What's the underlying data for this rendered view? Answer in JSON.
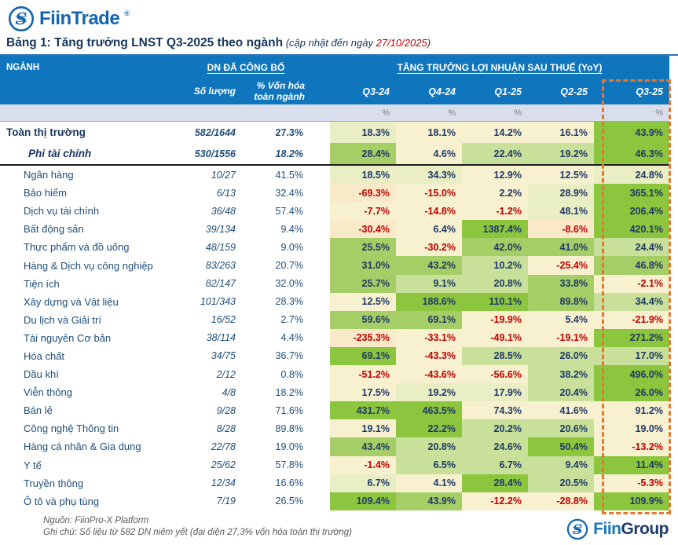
{
  "brand": {
    "name": "FiinTrade",
    "reg_mark": "®"
  },
  "title": {
    "main": "Bảng 1: Tăng trưởng LNST Q3-2025 theo ngành",
    "update_prefix": " (cập nhật đến ngày ",
    "update_date": "27/10/2025",
    "update_suffix": ")"
  },
  "table": {
    "col_sector": "NGÀNH",
    "group_published": "DN ĐÃ CÔNG BỐ",
    "group_growth": "TĂNG TRƯỞNG LỢI NHUẬN SAU THUẾ (YoY)",
    "sub_count": "Số lượng",
    "sub_cap": "% Vốn hóa toàn ngành",
    "quarters": [
      "Q3-24",
      "Q4-24",
      "Q1-25",
      "Q2-25",
      "Q3-25"
    ],
    "unit_row": [
      "%",
      "%",
      "%",
      "",
      "%"
    ],
    "summary_rows": [
      {
        "label": "Toàn thị trường",
        "count": "582/1644",
        "cap": "27.3%",
        "values": [
          "18.3%",
          "18.1%",
          "14.2%",
          "16.1%",
          "43.9%"
        ],
        "tones": [
          "p",
          "y",
          "y",
          "y",
          "G"
        ],
        "style": "bold"
      },
      {
        "label": "Phi tài chính",
        "count": "530/1556",
        "cap": "18.2%",
        "values": [
          "28.4%",
          "4.6%",
          "22.4%",
          "19.2%",
          "46.3%"
        ],
        "tones": [
          "g",
          "y",
          "l",
          "l",
          "G"
        ],
        "style": "bold-italic"
      }
    ],
    "sector_rows": [
      {
        "label": "Ngân hàng",
        "count": "10/27",
        "cap": "41.5%",
        "values": [
          "18.5%",
          "34.3%",
          "12.9%",
          "12.5%",
          "24.8%"
        ],
        "tones": [
          "p",
          "p",
          "y",
          "y",
          "p"
        ]
      },
      {
        "label": "Bảo hiểm",
        "count": "6/13",
        "cap": "32.4%",
        "values": [
          "-69.3%",
          "-15.0%",
          "2.2%",
          "28.9%",
          "365.1%"
        ],
        "tones": [
          "o",
          "y",
          "y",
          "p",
          "G"
        ]
      },
      {
        "label": "Dịch vụ tài chính",
        "count": "36/48",
        "cap": "57.4%",
        "values": [
          "-7.7%",
          "-14.8%",
          "-1.2%",
          "48.1%",
          "206.4%"
        ],
        "tones": [
          "y",
          "y",
          "y",
          "p",
          "G"
        ]
      },
      {
        "label": "Bất động sản",
        "count": "39/134",
        "cap": "9.4%",
        "values": [
          "-30.4%",
          "6.4%",
          "1387.4%",
          "-8.6%",
          "420.1%"
        ],
        "tones": [
          "o",
          "y",
          "G",
          "o",
          "G"
        ]
      },
      {
        "label": "Thực phẩm và đồ uống",
        "count": "48/159",
        "cap": "9.0%",
        "values": [
          "25.5%",
          "-30.2%",
          "42.0%",
          "41.0%",
          "24.4%"
        ],
        "tones": [
          "g",
          "y",
          "g",
          "g",
          "l"
        ]
      },
      {
        "label": "Hàng & Dịch vụ công nghiệp",
        "count": "83/263",
        "cap": "20.7%",
        "values": [
          "31.0%",
          "43.2%",
          "10.2%",
          "-25.4%",
          "46.8%"
        ],
        "tones": [
          "g",
          "g",
          "l",
          "y",
          "g"
        ]
      },
      {
        "label": "Tiện ích",
        "count": "82/147",
        "cap": "32.0%",
        "values": [
          "25.7%",
          "9.1%",
          "20.8%",
          "33.8%",
          "-2.1%"
        ],
        "tones": [
          "g",
          "l",
          "l",
          "g",
          "y"
        ]
      },
      {
        "label": "Xây dựng và Vật liệu",
        "count": "101/343",
        "cap": "28.3%",
        "values": [
          "12.5%",
          "188.6%",
          "110.1%",
          "89.8%",
          "34.4%"
        ],
        "tones": [
          "y",
          "G",
          "G",
          "g",
          "l"
        ]
      },
      {
        "label": "Du lịch và Giải trí",
        "count": "16/52",
        "cap": "2.7%",
        "values": [
          "59.6%",
          "69.1%",
          "-19.9%",
          "5.4%",
          "-21.9%"
        ],
        "tones": [
          "g",
          "g",
          "y",
          "y",
          "y"
        ]
      },
      {
        "label": "Tài nguyên Cơ bản",
        "count": "38/114",
        "cap": "4.4%",
        "values": [
          "-235.3%",
          "-33.1%",
          "-49.1%",
          "-19.1%",
          "271.2%"
        ],
        "tones": [
          "o",
          "y",
          "y",
          "y",
          "G"
        ]
      },
      {
        "label": "Hóa chất",
        "count": "34/75",
        "cap": "36.7%",
        "values": [
          "69.1%",
          "-43.3%",
          "28.5%",
          "26.0%",
          "17.0%"
        ],
        "tones": [
          "G",
          "y",
          "l",
          "l",
          "l"
        ]
      },
      {
        "label": "Dầu khí",
        "count": "2/12",
        "cap": "0.8%",
        "values": [
          "-51.2%",
          "-43.6%",
          "-56.6%",
          "38.2%",
          "496.0%"
        ],
        "tones": [
          "y",
          "y",
          "y",
          "l",
          "G"
        ]
      },
      {
        "label": "Viễn thông",
        "count": "4/8",
        "cap": "18.2%",
        "values": [
          "17.5%",
          "19.2%",
          "17.9%",
          "20.4%",
          "26.0%"
        ],
        "tones": [
          "y",
          "p",
          "p",
          "l",
          "G"
        ]
      },
      {
        "label": "Bán lẻ",
        "count": "9/28",
        "cap": "71.6%",
        "values": [
          "431.7%",
          "463.5%",
          "74.3%",
          "41.6%",
          "91.2%"
        ],
        "tones": [
          "G",
          "G",
          "y",
          "y",
          "y"
        ]
      },
      {
        "label": "Công nghệ Thông tin",
        "count": "8/28",
        "cap": "89.8%",
        "values": [
          "19.1%",
          "22.2%",
          "20.2%",
          "20.6%",
          "19.0%"
        ],
        "tones": [
          "y",
          "G",
          "l",
          "l",
          "y"
        ]
      },
      {
        "label": "Hàng cá nhân & Gia dụng",
        "count": "22/78",
        "cap": "19.0%",
        "values": [
          "43.4%",
          "20.8%",
          "24.6%",
          "50.4%",
          "-13.2%"
        ],
        "tones": [
          "g",
          "l",
          "l",
          "G",
          "y"
        ]
      },
      {
        "label": "Y tế",
        "count": "25/62",
        "cap": "57.8%",
        "values": [
          "-1.4%",
          "6.5%",
          "6.7%",
          "9.4%",
          "11.4%"
        ],
        "tones": [
          "y",
          "l",
          "l",
          "l",
          "G"
        ]
      },
      {
        "label": "Truyền thông",
        "count": "12/34",
        "cap": "16.6%",
        "values": [
          "6.7%",
          "4.1%",
          "28.4%",
          "20.5%",
          "-5.3%"
        ],
        "tones": [
          "p",
          "y",
          "G",
          "l",
          "y"
        ]
      },
      {
        "label": "Ô tô và phụ tùng",
        "count": "7/19",
        "cap": "26.5%",
        "values": [
          "109.4%",
          "43.9%",
          "-12.2%",
          "-28.8%",
          "109.9%"
        ],
        "tones": [
          "G",
          "g",
          "y",
          "y",
          "G"
        ]
      }
    ]
  },
  "footer": {
    "source": "Nguồn: FiinPro-X Platform",
    "note": "Ghi chú: Số liệu từ 582 DN niêm yết (đại diện 27,3% vốn hóa toàn thị trường)",
    "logo_fiin": "Fiin",
    "logo_group": "Group"
  },
  "colors": {
    "header_blue": "#0F75BC",
    "unit_band": "#D9DEED",
    "highlight_dash": "#E8772E",
    "negative_text": "#C00000",
    "value_text": "#1F3864",
    "green_strong": "#8CC63F",
    "green_medium": "#A5CF66",
    "green_light": "#C8E09A",
    "pale_green": "#E9EEC4",
    "cream": "#F8F1D0",
    "cream_orange": "#FAE9C8"
  }
}
